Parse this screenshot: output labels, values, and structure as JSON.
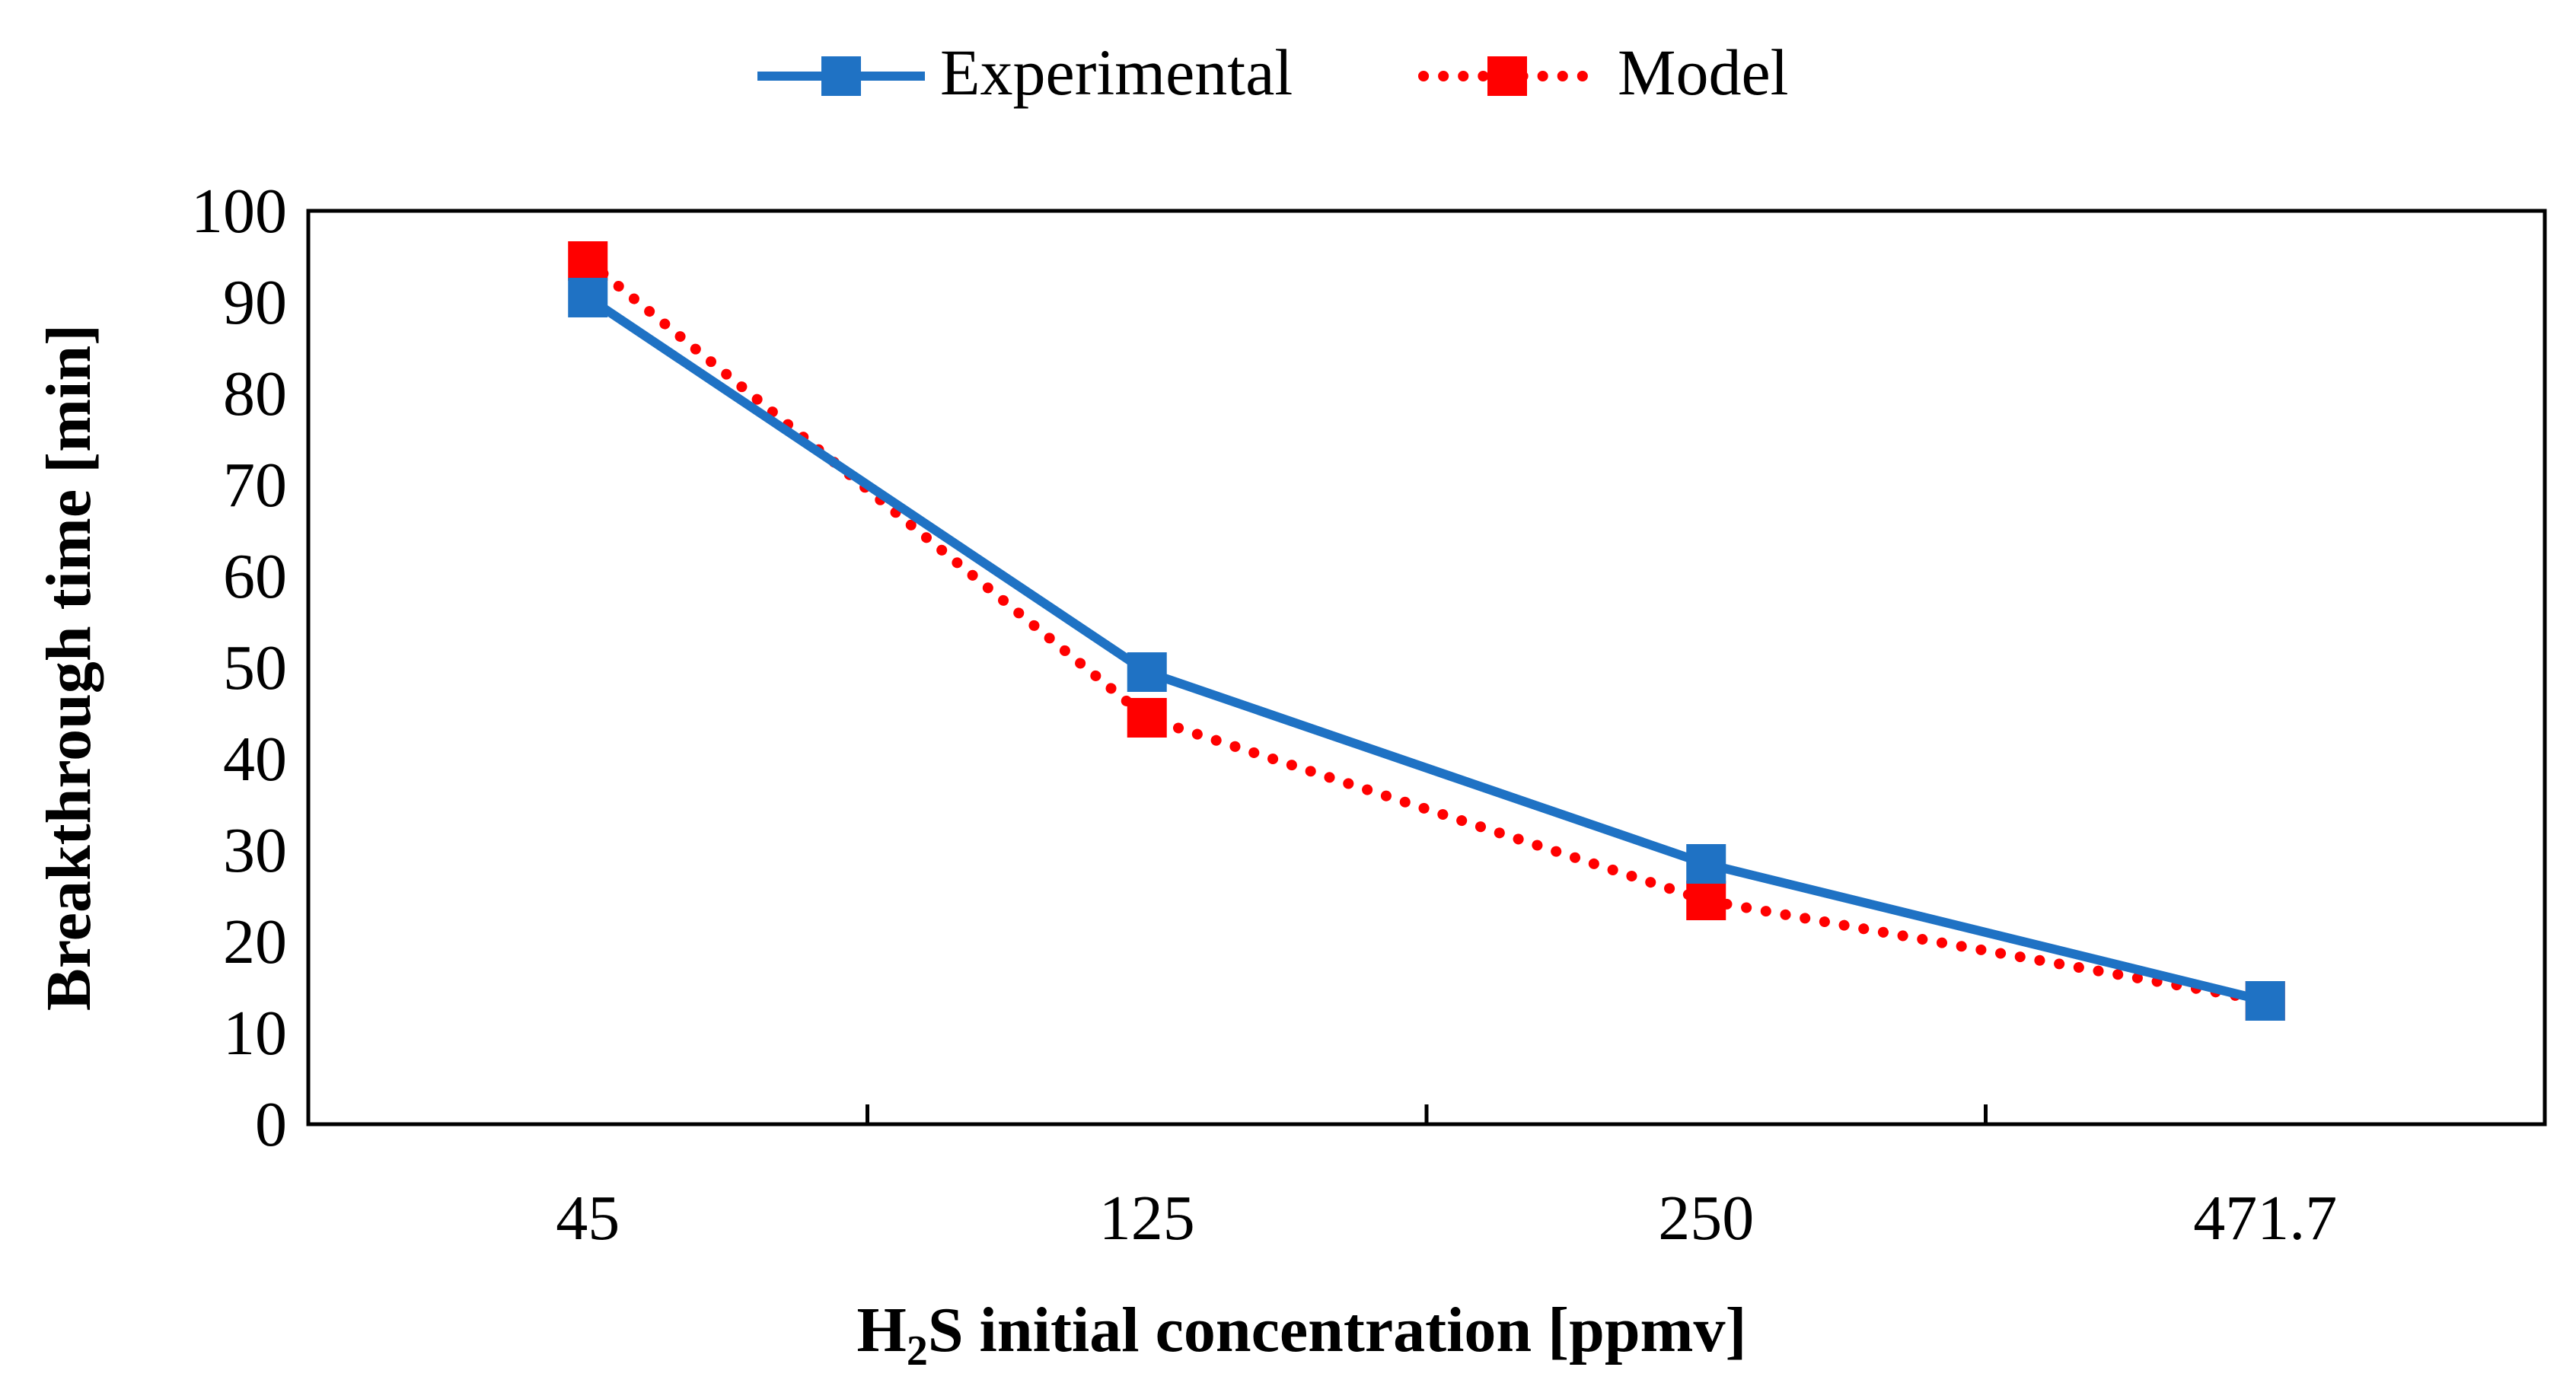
{
  "chart_data": {
    "type": "line",
    "title": "",
    "categories": [
      "45",
      "125",
      "250",
      "471.7"
    ],
    "series": [
      {
        "name": "Experimental",
        "values": [
          90.5,
          49.5,
          28.5,
          13.5
        ],
        "color": "#1F72C4",
        "style": "solid",
        "marker": "square"
      },
      {
        "name": "Model",
        "values": [
          94.5,
          44.5,
          24.5,
          13.5
        ],
        "color": "#FF0000",
        "style": "dotted",
        "marker": "square"
      }
    ],
    "xlabel": {
      "prefix": "H",
      "subscript": "2",
      "suffix": "S initial concentration [ppmv]"
    },
    "ylabel": "Breakthrough time [min]",
    "ylim": [
      0,
      100
    ],
    "yticks": [
      0,
      10,
      20,
      30,
      40,
      50,
      60,
      70,
      80,
      90,
      100
    ],
    "grid": false,
    "legend_position": "top-center"
  }
}
